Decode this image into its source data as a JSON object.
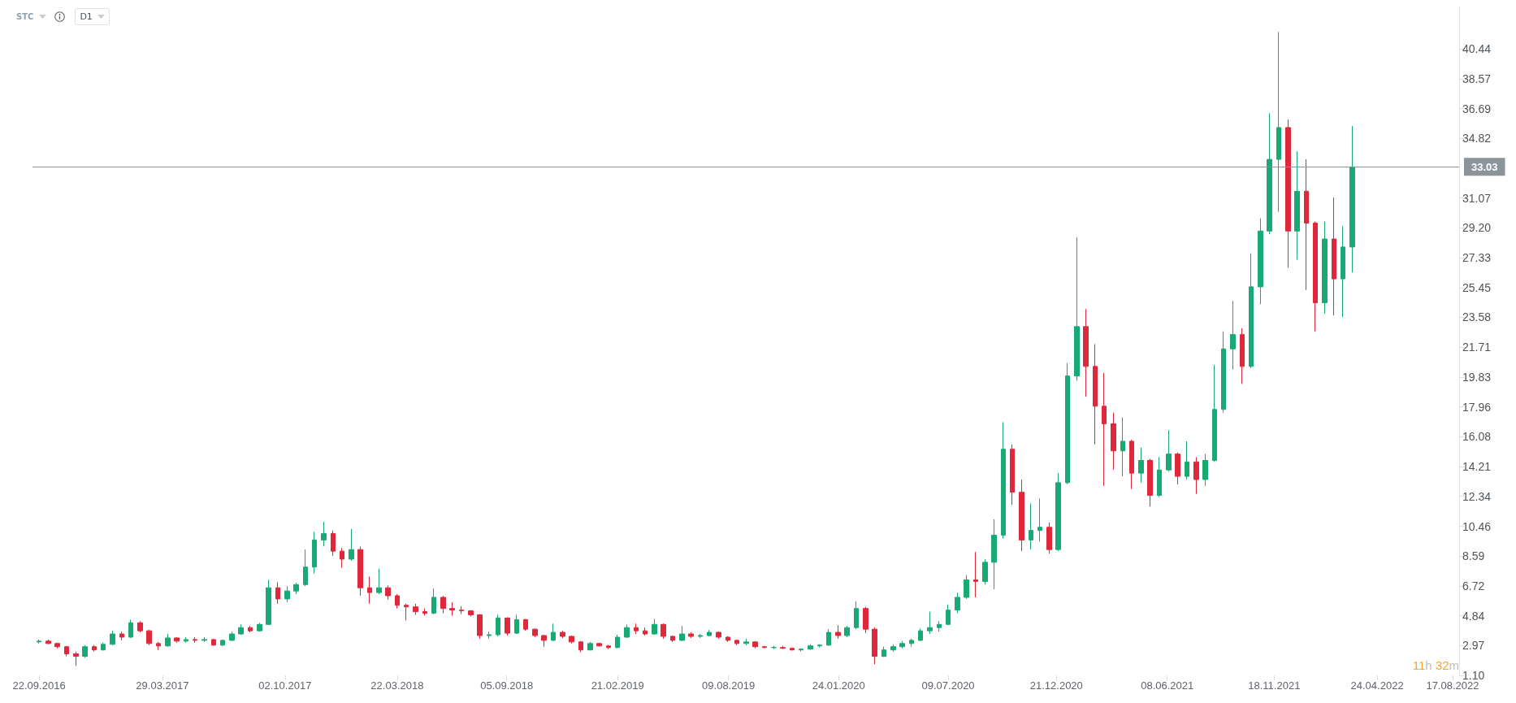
{
  "chart_data": {
    "type": "candlestick",
    "x": [
      "2016-09-22",
      "2016-10-06",
      "2016-10-20",
      "2016-11-03",
      "2016-11-17",
      "2016-12-01",
      "2016-12-15",
      "2016-12-29",
      "2017-01-12",
      "2017-01-26",
      "2017-02-09",
      "2017-02-23",
      "2017-03-09",
      "2017-03-23",
      "2017-04-06",
      "2017-04-20",
      "2017-05-04",
      "2017-05-18",
      "2017-06-01",
      "2017-06-15",
      "2017-06-29",
      "2017-07-13",
      "2017-07-27",
      "2017-08-10",
      "2017-08-24",
      "2017-09-07",
      "2017-09-21",
      "2017-10-05",
      "2017-10-19",
      "2017-11-02",
      "2017-11-16",
      "2017-11-30",
      "2017-12-14",
      "2017-12-28",
      "2018-01-11",
      "2018-01-25",
      "2018-02-08",
      "2018-02-22",
      "2018-03-08",
      "2018-03-22",
      "2018-04-05",
      "2018-04-19",
      "2018-05-03",
      "2018-05-17",
      "2018-05-31",
      "2018-06-14",
      "2018-06-28",
      "2018-07-12",
      "2018-07-26",
      "2018-08-09",
      "2018-08-23",
      "2018-09-06",
      "2018-09-20",
      "2018-10-04",
      "2018-10-18",
      "2018-11-01",
      "2018-11-15",
      "2018-11-29",
      "2018-12-13",
      "2018-12-27",
      "2019-01-10",
      "2019-01-24",
      "2019-02-07",
      "2019-02-21",
      "2019-03-07",
      "2019-03-21",
      "2019-04-04",
      "2019-04-18",
      "2019-05-02",
      "2019-05-16",
      "2019-05-30",
      "2019-06-13",
      "2019-06-27",
      "2019-07-11",
      "2019-07-25",
      "2019-08-08",
      "2019-08-22",
      "2019-09-05",
      "2019-09-19",
      "2019-10-03",
      "2019-10-17",
      "2019-10-31",
      "2019-11-14",
      "2019-11-28",
      "2019-12-12",
      "2019-12-26",
      "2020-01-09",
      "2020-01-23",
      "2020-02-06",
      "2020-02-20",
      "2020-03-05",
      "2020-03-19",
      "2020-04-02",
      "2020-04-16",
      "2020-04-30",
      "2020-05-14",
      "2020-05-28",
      "2020-06-11",
      "2020-06-25",
      "2020-07-09",
      "2020-07-23",
      "2020-08-06",
      "2020-08-20",
      "2020-09-03",
      "2020-09-17",
      "2020-10-01",
      "2020-10-15",
      "2020-10-29",
      "2020-11-12",
      "2020-11-26",
      "2020-12-10",
      "2020-12-24",
      "2021-01-07",
      "2021-01-21",
      "2021-02-04",
      "2021-02-18",
      "2021-03-04",
      "2021-03-18",
      "2021-04-01",
      "2021-04-15",
      "2021-04-29",
      "2021-05-13",
      "2021-05-27",
      "2021-06-10",
      "2021-06-24",
      "2021-07-08",
      "2021-07-22",
      "2021-08-05",
      "2021-08-19",
      "2021-09-02",
      "2021-09-16",
      "2021-09-30",
      "2021-10-14",
      "2021-10-28",
      "2021-11-11",
      "2021-11-25",
      "2021-12-09",
      "2021-12-23",
      "2022-01-06",
      "2022-01-20",
      "2022-02-03",
      "2022-02-17",
      "2022-03-03",
      "2022-03-17"
    ],
    "ohlc": [
      [
        3.2,
        3.35,
        3.1,
        3.25
      ],
      [
        3.25,
        3.35,
        3.05,
        3.1
      ],
      [
        3.1,
        3.15,
        2.8,
        2.9
      ],
      [
        2.9,
        2.95,
        2.3,
        2.45
      ],
      [
        2.45,
        2.6,
        1.7,
        2.3
      ],
      [
        2.3,
        3.0,
        2.2,
        2.9
      ],
      [
        2.9,
        3.0,
        2.6,
        2.7
      ],
      [
        2.7,
        3.15,
        2.65,
        3.05
      ],
      [
        3.05,
        3.9,
        3.0,
        3.7
      ],
      [
        3.7,
        3.85,
        3.3,
        3.5
      ],
      [
        3.5,
        4.6,
        3.45,
        4.4
      ],
      [
        4.4,
        4.5,
        3.8,
        3.9
      ],
      [
        3.9,
        3.95,
        3.0,
        3.1
      ],
      [
        3.1,
        3.2,
        2.7,
        2.95
      ],
      [
        2.95,
        3.7,
        2.9,
        3.45
      ],
      [
        3.45,
        3.5,
        3.15,
        3.25
      ],
      [
        3.25,
        3.5,
        3.15,
        3.35
      ],
      [
        3.35,
        3.5,
        3.15,
        3.3
      ],
      [
        3.3,
        3.5,
        3.2,
        3.35
      ],
      [
        3.35,
        3.4,
        2.95,
        3.0
      ],
      [
        3.0,
        3.35,
        2.95,
        3.3
      ],
      [
        3.3,
        3.85,
        3.25,
        3.7
      ],
      [
        3.7,
        4.3,
        3.65,
        4.1
      ],
      [
        4.1,
        4.2,
        3.8,
        3.9
      ],
      [
        3.9,
        4.4,
        3.85,
        4.3
      ],
      [
        4.3,
        7.1,
        4.25,
        6.6
      ],
      [
        6.6,
        6.95,
        5.6,
        5.9
      ],
      [
        5.9,
        6.7,
        5.7,
        6.4
      ],
      [
        6.4,
        6.9,
        6.2,
        6.8
      ],
      [
        6.8,
        9.0,
        6.7,
        7.9
      ],
      [
        7.9,
        10.1,
        7.5,
        9.6
      ],
      [
        9.6,
        10.75,
        9.2,
        10.0
      ],
      [
        10.0,
        10.2,
        8.6,
        8.9
      ],
      [
        8.9,
        9.1,
        7.85,
        8.4
      ],
      [
        8.4,
        10.3,
        8.3,
        9.0
      ],
      [
        9.0,
        9.2,
        6.1,
        6.6
      ],
      [
        6.6,
        7.3,
        5.6,
        6.3
      ],
      [
        6.3,
        7.8,
        6.2,
        6.6
      ],
      [
        6.6,
        6.75,
        5.85,
        6.1
      ],
      [
        6.1,
        6.2,
        5.3,
        5.5
      ],
      [
        5.5,
        5.6,
        4.55,
        5.4
      ],
      [
        5.4,
        5.6,
        4.9,
        5.1
      ],
      [
        5.1,
        5.3,
        4.85,
        5.0
      ],
      [
        5.0,
        6.55,
        4.95,
        6.0
      ],
      [
        6.0,
        6.1,
        5.0,
        5.3
      ],
      [
        5.3,
        5.7,
        4.85,
        5.2
      ],
      [
        5.2,
        5.45,
        4.95,
        5.15
      ],
      [
        5.15,
        5.2,
        4.8,
        4.9
      ],
      [
        4.9,
        4.95,
        3.4,
        3.6
      ],
      [
        3.6,
        3.85,
        3.4,
        3.65
      ],
      [
        3.65,
        4.9,
        3.55,
        4.7
      ],
      [
        4.7,
        4.75,
        3.6,
        3.75
      ],
      [
        3.75,
        4.9,
        3.7,
        4.6
      ],
      [
        4.6,
        4.65,
        3.9,
        4.0
      ],
      [
        4.0,
        4.05,
        3.5,
        3.6
      ],
      [
        3.6,
        3.65,
        2.9,
        3.3
      ],
      [
        3.3,
        4.35,
        3.25,
        3.8
      ],
      [
        3.8,
        3.9,
        3.45,
        3.55
      ],
      [
        3.55,
        3.6,
        3.1,
        3.2
      ],
      [
        3.2,
        3.25,
        2.55,
        2.7
      ],
      [
        2.7,
        3.2,
        2.65,
        3.1
      ],
      [
        3.1,
        3.15,
        2.9,
        2.95
      ],
      [
        2.95,
        3.0,
        2.75,
        2.85
      ],
      [
        2.85,
        3.65,
        2.8,
        3.5
      ],
      [
        3.5,
        4.3,
        3.45,
        4.1
      ],
      [
        4.1,
        4.35,
        3.7,
        3.9
      ],
      [
        3.9,
        4.1,
        3.6,
        3.7
      ],
      [
        3.7,
        4.65,
        3.65,
        4.3
      ],
      [
        4.3,
        4.35,
        3.4,
        3.55
      ],
      [
        3.55,
        3.6,
        3.2,
        3.3
      ],
      [
        3.3,
        4.2,
        3.25,
        3.7
      ],
      [
        3.7,
        3.8,
        3.45,
        3.55
      ],
      [
        3.55,
        3.7,
        3.45,
        3.6
      ],
      [
        3.6,
        3.95,
        3.55,
        3.8
      ],
      [
        3.8,
        3.85,
        3.4,
        3.5
      ],
      [
        3.5,
        3.55,
        3.2,
        3.3
      ],
      [
        3.3,
        3.35,
        3.0,
        3.1
      ],
      [
        3.1,
        3.4,
        3.0,
        3.2
      ],
      [
        3.2,
        3.25,
        2.8,
        2.9
      ],
      [
        2.9,
        2.95,
        2.8,
        2.85
      ],
      [
        2.85,
        2.95,
        2.75,
        2.85
      ],
      [
        2.85,
        2.95,
        2.75,
        2.8
      ],
      [
        2.8,
        2.85,
        2.65,
        2.7
      ],
      [
        2.7,
        2.8,
        2.6,
        2.75
      ],
      [
        2.75,
        3.05,
        2.7,
        2.95
      ],
      [
        2.95,
        3.05,
        2.85,
        3.0
      ],
      [
        3.0,
        4.0,
        2.95,
        3.8
      ],
      [
        3.8,
        4.25,
        3.4,
        3.6
      ],
      [
        3.6,
        4.2,
        3.5,
        4.1
      ],
      [
        4.1,
        5.75,
        4.0,
        5.3
      ],
      [
        5.3,
        5.4,
        3.75,
        4.0
      ],
      [
        4.0,
        4.1,
        1.8,
        2.3
      ],
      [
        2.3,
        2.9,
        2.25,
        2.7
      ],
      [
        2.7,
        3.05,
        2.6,
        2.9
      ],
      [
        2.9,
        3.25,
        2.8,
        3.1
      ],
      [
        3.1,
        3.4,
        2.9,
        3.3
      ],
      [
        3.3,
        4.05,
        3.25,
        3.9
      ],
      [
        3.9,
        5.1,
        3.7,
        4.1
      ],
      [
        4.1,
        4.5,
        3.85,
        4.3
      ],
      [
        4.3,
        5.55,
        4.25,
        5.2
      ],
      [
        5.2,
        6.3,
        5.0,
        6.0
      ],
      [
        6.0,
        7.4,
        5.9,
        7.1
      ],
      [
        7.1,
        8.85,
        6.0,
        7.0
      ],
      [
        7.0,
        8.4,
        6.8,
        8.2
      ],
      [
        8.2,
        10.9,
        6.5,
        9.9
      ],
      [
        9.9,
        17.0,
        9.7,
        15.3
      ],
      [
        15.3,
        15.6,
        11.8,
        12.6
      ],
      [
        12.6,
        13.4,
        8.9,
        9.6
      ],
      [
        9.6,
        11.9,
        9.0,
        10.2
      ],
      [
        10.2,
        12.2,
        9.5,
        10.4
      ],
      [
        10.4,
        10.7,
        8.75,
        9.0
      ],
      [
        9.0,
        13.8,
        8.9,
        13.2
      ],
      [
        13.2,
        20.7,
        13.1,
        19.9
      ],
      [
        19.9,
        28.6,
        19.6,
        23.0
      ],
      [
        23.0,
        24.1,
        18.6,
        20.5
      ],
      [
        20.5,
        21.9,
        15.6,
        18.0
      ],
      [
        18.0,
        20.1,
        13.0,
        16.9
      ],
      [
        16.9,
        17.6,
        14.0,
        15.2
      ],
      [
        15.2,
        17.3,
        13.6,
        15.8
      ],
      [
        15.8,
        15.9,
        12.8,
        13.8
      ],
      [
        13.8,
        15.4,
        13.2,
        14.6
      ],
      [
        14.6,
        14.7,
        11.7,
        12.4
      ],
      [
        12.4,
        14.8,
        12.3,
        14.0
      ],
      [
        14.0,
        16.5,
        13.9,
        15.0
      ],
      [
        15.0,
        15.1,
        13.1,
        13.6
      ],
      [
        13.6,
        15.8,
        13.4,
        14.5
      ],
      [
        14.5,
        14.8,
        12.5,
        13.4
      ],
      [
        13.4,
        15.0,
        13.0,
        14.6
      ],
      [
        14.6,
        20.6,
        14.5,
        17.8
      ],
      [
        17.8,
        22.7,
        17.6,
        21.6
      ],
      [
        21.6,
        24.6,
        20.3,
        22.5
      ],
      [
        22.5,
        22.9,
        19.4,
        20.5
      ],
      [
        20.5,
        27.6,
        20.4,
        25.5
      ],
      [
        25.5,
        29.8,
        24.4,
        29.0
      ],
      [
        29.0,
        36.4,
        28.8,
        33.5
      ],
      [
        33.5,
        41.5,
        30.2,
        35.5
      ],
      [
        35.5,
        36.0,
        26.7,
        29.0
      ],
      [
        29.0,
        34.0,
        27.2,
        31.5
      ],
      [
        31.5,
        33.5,
        25.3,
        29.5
      ],
      [
        29.5,
        29.6,
        22.7,
        24.5
      ],
      [
        24.5,
        29.6,
        23.8,
        28.5
      ],
      [
        28.5,
        31.1,
        23.7,
        26.0
      ],
      [
        26.0,
        29.3,
        23.6,
        28.0
      ],
      [
        28.0,
        35.6,
        26.4,
        33.03
      ]
    ],
    "colors": [
      "#19a974",
      "#e0283c",
      "#e0283c",
      "#e0283c",
      "#e0283c",
      "#19a974",
      "#e0283c",
      "#19a974",
      "#19a974",
      "#e0283c",
      "#19a974",
      "#e0283c",
      "#e0283c",
      "#e0283c",
      "#19a974",
      "#e0283c",
      "#19a974",
      "#e0283c",
      "#19a974",
      "#e0283c",
      "#19a974",
      "#19a974",
      "#19a974",
      "#e0283c",
      "#19a974",
      "#19a974",
      "#e0283c",
      "#19a974",
      "#19a974",
      "#19a974",
      "#19a974",
      "#19a974",
      "#e0283c",
      "#e0283c",
      "#19a974",
      "#e0283c",
      "#e0283c",
      "#19a974",
      "#e0283c",
      "#e0283c",
      "#e0283c",
      "#e0283c",
      "#e0283c",
      "#19a974",
      "#e0283c",
      "#e0283c",
      "#e0283c",
      "#e0283c",
      "#e0283c",
      "#19a974",
      "#19a974",
      "#e0283c",
      "#19a974",
      "#e0283c",
      "#e0283c",
      "#e0283c",
      "#19a974",
      "#e0283c",
      "#e0283c",
      "#e0283c",
      "#19a974",
      "#e0283c",
      "#e0283c",
      "#19a974",
      "#19a974",
      "#e0283c",
      "#e0283c",
      "#19a974",
      "#e0283c",
      "#e0283c",
      "#19a974",
      "#e0283c",
      "#19a974",
      "#19a974",
      "#e0283c",
      "#e0283c",
      "#e0283c",
      "#19a974",
      "#e0283c",
      "#e0283c",
      "#19a974",
      "#e0283c",
      "#e0283c",
      "#19a974",
      "#19a974",
      "#19a974",
      "#19a974",
      "#e0283c",
      "#19a974",
      "#19a974",
      "#e0283c",
      "#e0283c",
      "#19a974",
      "#19a974",
      "#19a974",
      "#19a974",
      "#19a974",
      "#19a974",
      "#19a974",
      "#19a974",
      "#19a974",
      "#19a974",
      "#e0283c",
      "#19a974",
      "#19a974",
      "#19a974",
      "#e0283c",
      "#e0283c",
      "#19a974",
      "#19a974",
      "#e0283c",
      "#19a974",
      "#19a974",
      "#19a974",
      "#e0283c",
      "#e0283c",
      "#e0283c",
      "#e0283c",
      "#19a974",
      "#e0283c",
      "#19a974",
      "#e0283c",
      "#19a974",
      "#19a974",
      "#e0283c",
      "#19a974",
      "#e0283c",
      "#19a974",
      "#19a974",
      "#19a974",
      "#19a974",
      "#e0283c",
      "#19a974",
      "#19a974",
      "#19a974",
      "#19a974",
      "#e0283c",
      "#19a974",
      "#e0283c",
      "#e0283c",
      "#19a974",
      "#e0283c",
      "#19a974",
      "#19a974"
    ],
    "xlim": [
      "2016-09-12",
      "2022-08-27"
    ],
    "xticks": [
      {
        "value": "2016-09-22",
        "label": "22.09.2016"
      },
      {
        "value": "2017-03-29",
        "label": "29.03.2017"
      },
      {
        "value": "2017-10-02",
        "label": "02.10.2017"
      },
      {
        "value": "2018-03-22",
        "label": "22.03.2018"
      },
      {
        "value": "2018-09-05",
        "label": "05.09.2018"
      },
      {
        "value": "2019-02-21",
        "label": "21.02.2019"
      },
      {
        "value": "2019-08-09",
        "label": "09.08.2019"
      },
      {
        "value": "2020-01-24",
        "label": "24.01.2020"
      },
      {
        "value": "2020-07-09",
        "label": "09.07.2020"
      },
      {
        "value": "2020-12-21",
        "label": "21.12.2020"
      },
      {
        "value": "2021-06-08",
        "label": "08.06.2021"
      },
      {
        "value": "2021-11-18",
        "label": "18.11.2021"
      },
      {
        "value": "2022-04-24",
        "label": "24.04.2022"
      },
      {
        "value": "2022-08-17",
        "label": "17.08.2022"
      }
    ],
    "ylim": [
      1.1,
      43.1
    ],
    "yticks": [
      {
        "value": 1.1,
        "label": "1.10"
      },
      2.97,
      4.84,
      6.72,
      8.59,
      10.46,
      12.34,
      14.21,
      16.08,
      17.96,
      19.83,
      21.71,
      23.58,
      25.45,
      27.33,
      {
        "value": 29.2,
        "label": "29.20"
      },
      31.07,
      34.82,
      36.69,
      38.57,
      40.44
    ],
    "ref_lines": [
      {
        "axis": "y",
        "value": 33.03,
        "label": "33.03",
        "color": "#8a9499"
      }
    ],
    "annotations": [
      "STC",
      "D1",
      "11h 32m"
    ]
  }
}
